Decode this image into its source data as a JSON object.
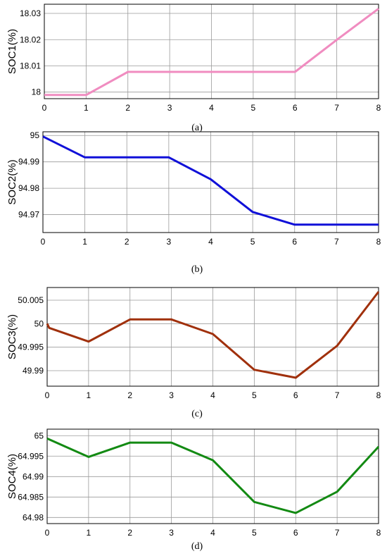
{
  "chart_data": [
    {
      "type": "line",
      "caption": "(a)",
      "ylabel": "SOC1(%)",
      "color": "#f08cc0",
      "xlim": [
        0,
        8
      ],
      "ylim": [
        17.9975,
        18.0335
      ],
      "xticks": [
        "0",
        "1",
        "2",
        "3",
        "4",
        "5",
        "6",
        "7",
        "8"
      ],
      "yticks": [
        "18",
        "18.01",
        "18.02",
        "18.03"
      ],
      "ytick_values": [
        18,
        18.01,
        18.02,
        18.03
      ],
      "grid": true,
      "x": [
        0,
        1,
        2,
        3,
        4,
        5,
        6,
        7,
        8
      ],
      "series": [
        {
          "values": [
            17.9989,
            17.9989,
            18.0077,
            18.0077,
            18.0077,
            18.0077,
            18.0077,
            18.0199,
            18.0318
          ]
        }
      ]
    },
    {
      "type": "line",
      "caption": "(b)",
      "ylabel": "SOC2(%)",
      "color": "#1010d8",
      "xlim": [
        0,
        8
      ],
      "ylim": [
        94.9632,
        95.0014
      ],
      "xticks": [
        "0",
        "1",
        "2",
        "3",
        "4",
        "5",
        "6",
        "7",
        "8"
      ],
      "yticks": [
        "94.97",
        "94.98",
        "94.99",
        "95"
      ],
      "ytick_values": [
        94.97,
        94.98,
        94.99,
        95
      ],
      "grid": true,
      "x": [
        0,
        1,
        2,
        3,
        4,
        5,
        6,
        7,
        8
      ],
      "series": [
        {
          "values": [
            94.9996,
            94.9917,
            94.9917,
            94.9917,
            94.9834,
            94.971,
            94.9662,
            94.9662,
            94.9662
          ]
        }
      ]
    },
    {
      "type": "line",
      "caption": "(c)",
      "ylabel": "SOC3(%)",
      "color": "#a0300c",
      "xlim": [
        0,
        8
      ],
      "ylim": [
        49.9867,
        50.0077
      ],
      "xticks": [
        "0",
        "1",
        "2",
        "3",
        "4",
        "5",
        "6",
        "7",
        "8"
      ],
      "yticks": [
        "49.99",
        "49.995",
        "50",
        "50.005"
      ],
      "ytick_values": [
        49.99,
        49.995,
        50,
        50.005
      ],
      "grid": true,
      "x": [
        0,
        0.05,
        1,
        2,
        3,
        4,
        5,
        6,
        7,
        8
      ],
      "series": [
        {
          "values": [
            50.0,
            49.9991,
            49.9962,
            50.0009,
            50.0009,
            49.9978,
            49.9902,
            49.9885,
            49.9953,
            50.0068
          ]
        }
      ]
    },
    {
      "type": "line",
      "caption": "(d)",
      "ylabel": "SOC4(%)",
      "color": "#138a13",
      "xlim": [
        0,
        8
      ],
      "ylim": [
        64.9785,
        65.0016
      ],
      "xticks": [
        "0",
        "1",
        "2",
        "3",
        "4",
        "5",
        "6",
        "7",
        "8"
      ],
      "yticks": [
        "64.98",
        "64.985",
        "64.99",
        "64.995",
        "65"
      ],
      "ytick_values": [
        64.98,
        64.985,
        64.99,
        64.995,
        65
      ],
      "grid": true,
      "x": [
        0,
        1,
        2,
        3,
        4,
        5,
        6,
        7,
        8
      ],
      "series": [
        {
          "values": [
            64.9993,
            64.9948,
            64.9983,
            64.9983,
            64.994,
            64.9838,
            64.9811,
            64.9863,
            64.9973
          ]
        }
      ]
    }
  ]
}
